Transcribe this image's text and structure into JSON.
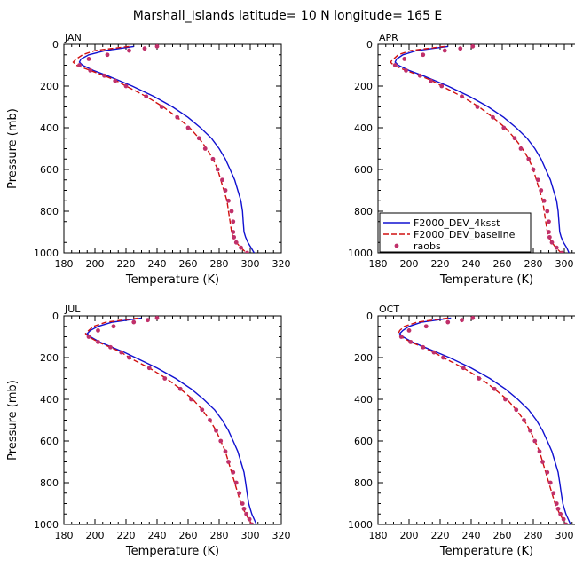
{
  "title": "Marshall_Islands  latitude= 10 N longitude= 165 E",
  "colors": {
    "model1": "#1010d0",
    "model2": "#d01010",
    "obs": "#c0306a",
    "axis": "#000000"
  },
  "chart_data": {
    "type": "line",
    "title": "Marshall_Islands  latitude= 10 N longitude= 165 E",
    "xlabel": "Temperature (K)",
    "ylabel": "Pressure (mb)",
    "xlim": [
      180,
      320
    ],
    "ylim": [
      0,
      1000
    ],
    "y_inverted": true,
    "xticks": [
      180,
      200,
      220,
      240,
      260,
      280,
      300,
      320
    ],
    "yticks": [
      0,
      200,
      400,
      600,
      800,
      1000
    ],
    "legend": {
      "placement": "lower-left of APR panel",
      "entries": [
        "F2000_DEV_4ksst",
        "F2000_DEV_baseline",
        "raobs"
      ]
    },
    "pressure": [
      10,
      30,
      50,
      70,
      85,
      100,
      125,
      150,
      175,
      200,
      250,
      300,
      350,
      400,
      450,
      500,
      550,
      600,
      650,
      700,
      750,
      800,
      850,
      900,
      925,
      950,
      975,
      1000
    ],
    "obs_pressure": [
      10,
      20,
      30,
      50,
      70,
      100,
      125,
      150,
      175,
      200,
      250,
      300,
      350,
      400,
      450,
      500,
      550,
      600,
      650,
      700,
      750,
      800,
      850,
      900,
      925,
      950,
      975,
      1000
    ],
    "panels": [
      {
        "month": "JAN",
        "series": [
          {
            "name": "F2000_DEV_4ksst",
            "values": [
              225,
              207,
              196,
              191,
              190,
              192,
              199,
              208,
              216,
              224,
              238,
              250,
              260,
              268,
              275,
              280,
              284,
              287,
              290,
              292,
              294,
              295,
              295.5,
              296,
              297,
              298.5,
              300.5,
              302.5
            ]
          },
          {
            "name": "F2000_DEV_baseline",
            "values": [
              222,
              200,
              192,
              188,
              186,
              188,
              197,
              206,
              214,
              220,
              233,
              244,
              253,
              261,
              267,
              272,
              276,
              279,
              281,
              283,
              285,
              286,
              287,
              288,
              289,
              291,
              294,
              297.5
            ]
          }
        ],
        "obs": [
          240,
          232,
          222,
          208,
          196,
          190,
          197,
          206,
          213,
          220,
          233,
          243,
          253,
          260,
          267,
          271,
          276,
          279,
          282,
          284,
          286,
          288,
          289,
          289,
          289.5,
          291,
          294,
          298
        ]
      },
      {
        "month": "APR",
        "series": [
          {
            "name": "F2000_DEV_4ksst",
            "values": [
              225,
              205,
              196,
              192,
              191,
              193,
              200,
              209,
              217,
              225,
              239,
              251,
              261,
              269,
              276,
              281,
              285,
              288,
              291,
              293,
              295,
              296,
              296.5,
              297,
              298,
              299.5,
              301.5,
              303
            ]
          },
          {
            "name": "F2000_DEV_baseline",
            "values": [
              223,
              201,
              193,
              190,
              188,
              190,
              198,
              207,
              215,
              221,
              234,
              245,
              254,
              262,
              268,
              273,
              277,
              280,
              282,
              284,
              286,
              287,
              288,
              289,
              290,
              292,
              294.5,
              298
            ]
          }
        ],
        "obs": [
          241,
          233,
          223,
          209,
          197,
          191,
          198,
          207,
          214,
          221,
          234,
          244,
          254,
          261,
          268,
          272,
          277,
          280,
          283,
          285,
          287,
          289,
          290,
          290,
          290.5,
          292,
          295,
          298.5
        ]
      },
      {
        "month": "JUL",
        "series": [
          {
            "name": "F2000_DEV_4ksst",
            "values": [
              230,
              211,
              202,
              197,
              195,
              197,
              203,
              211,
              219,
              226,
              240,
              252,
              262,
              270,
              277,
              282,
              286,
              289,
              292,
              294,
              296,
              297,
              298,
              299,
              300,
              301,
              302.5,
              304
            ]
          },
          {
            "name": "F2000_DEV_baseline",
            "values": [
              228,
              207,
              199,
              196,
              194,
              196,
              202,
              210,
              217,
              222,
              235,
              246,
              255,
              263,
              269,
              274,
              278,
              281,
              284,
              286,
              288,
              290,
              292,
              294,
              295.5,
              297,
              299,
              301
            ]
          }
        ],
        "obs": [
          240,
          234,
          225,
          212,
          202,
          196,
          202,
          210,
          217,
          222,
          235,
          245,
          255,
          262,
          269,
          274,
          278,
          281,
          284,
          286,
          289,
          291,
          293,
          295,
          296,
          297.5,
          299.5,
          301
        ]
      },
      {
        "month": "OCT",
        "series": [
          {
            "name": "F2000_DEV_4ksst",
            "values": [
              227,
              208,
              200,
              196,
              194,
              196,
              202,
              210,
              218,
              226,
              240,
              252,
              262,
              270,
              277,
              282,
              286,
              289,
              292,
              294,
              296,
              297,
              298,
              299,
              300,
              301,
              302.5,
              304
            ]
          },
          {
            "name": "F2000_DEV_baseline",
            "values": [
              225,
              205,
              197,
              194,
              193,
              195,
              201,
              209,
              216,
              222,
              235,
              246,
              255,
              263,
              269,
              274,
              278,
              281,
              284,
              286,
              288,
              290,
              292,
              294,
              295.5,
              297,
              299,
              301
            ]
          }
        ],
        "obs": [
          241,
          234,
          225,
          211,
          200,
          195,
          201,
          209,
          216,
          222,
          235,
          245,
          255,
          262,
          269,
          274,
          278,
          281,
          284,
          286,
          289,
          291,
          293,
          295,
          296,
          297.5,
          299.5,
          301
        ]
      }
    ]
  }
}
